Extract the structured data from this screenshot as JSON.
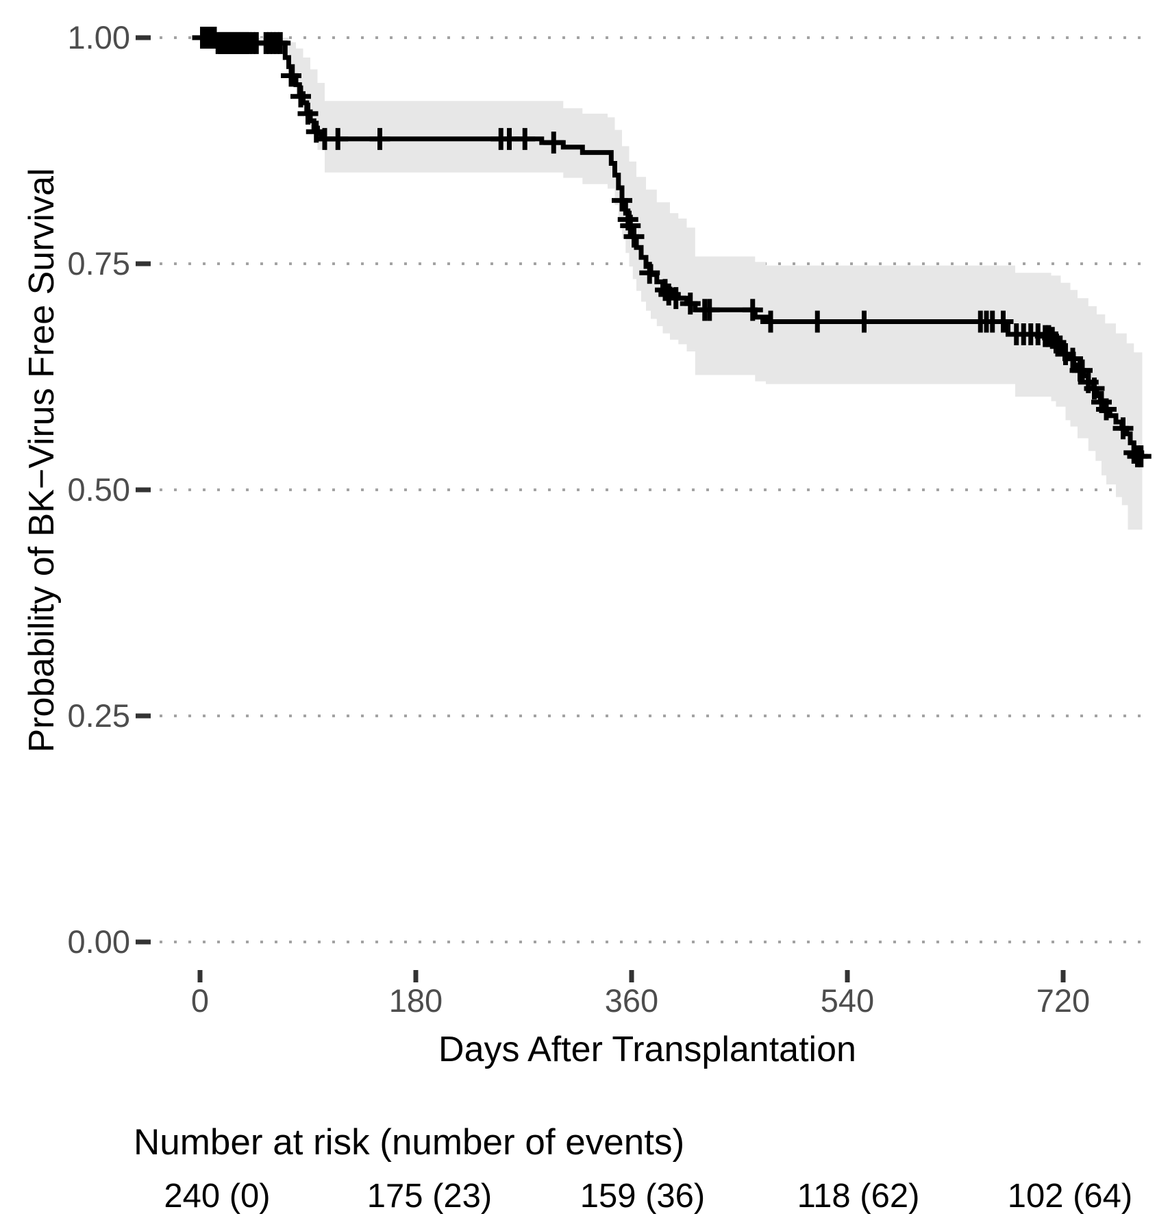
{
  "figure": {
    "background": "#ffffff"
  },
  "chart_data": {
    "type": "line",
    "subtype": "kaplan-meier-step-curve",
    "title": "",
    "xlabel": "Days After Transplantation",
    "ylabel": "Probability of BK−Virus Free Survival",
    "xlim": [
      -36,
      795
    ],
    "ylim": [
      0,
      1
    ],
    "grid": "horizontal-dotted",
    "legend_position": "none",
    "x_ticks": [
      {
        "value": 0,
        "label": "0"
      },
      {
        "value": 180,
        "label": "180"
      },
      {
        "value": 360,
        "label": "360"
      },
      {
        "value": 540,
        "label": "540"
      },
      {
        "value": 720,
        "label": "720"
      }
    ],
    "y_ticks": [
      {
        "value": 1.0,
        "label": "1.00"
      },
      {
        "value": 0.75,
        "label": "0.75"
      },
      {
        "value": 0.5,
        "label": "0.50"
      },
      {
        "value": 0.25,
        "label": "0.25"
      },
      {
        "value": 0.0,
        "label": "0.00"
      }
    ],
    "colors": {
      "curve": "#000000",
      "confidence_band": "#e7e7e7",
      "gridline": "#a3a3a3",
      "tick_mark": "#333333",
      "tick_label": "#4d4d4d",
      "axis_title": "#000000"
    },
    "km_curve": [
      [
        0,
        1.0
      ],
      [
        30,
        1.0
      ],
      [
        30,
        0.994
      ],
      [
        68,
        0.994
      ],
      [
        71,
        0.978
      ],
      [
        74,
        0.968
      ],
      [
        77,
        0.958
      ],
      [
        80,
        0.948
      ],
      [
        83,
        0.938
      ],
      [
        86,
        0.928
      ],
      [
        89,
        0.918
      ],
      [
        92,
        0.908
      ],
      [
        95,
        0.9
      ],
      [
        98,
        0.894
      ],
      [
        101,
        0.89
      ],
      [
        104,
        0.888
      ],
      [
        285,
        0.888
      ],
      [
        285,
        0.884
      ],
      [
        303,
        0.879
      ],
      [
        319,
        0.873
      ],
      [
        340,
        0.873
      ],
      [
        343,
        0.861
      ],
      [
        346,
        0.848
      ],
      [
        349,
        0.834
      ],
      [
        352,
        0.82
      ],
      [
        355,
        0.806
      ],
      [
        358,
        0.792
      ],
      [
        361,
        0.78
      ],
      [
        364,
        0.768
      ],
      [
        368,
        0.757
      ],
      [
        372,
        0.747
      ],
      [
        376,
        0.738
      ],
      [
        381,
        0.73
      ],
      [
        386,
        0.722
      ],
      [
        392,
        0.716
      ],
      [
        399,
        0.712
      ],
      [
        406,
        0.706
      ],
      [
        413,
        0.699
      ],
      [
        463,
        0.699
      ],
      [
        463,
        0.691
      ],
      [
        472,
        0.686
      ],
      [
        674,
        0.686
      ],
      [
        674,
        0.672
      ],
      [
        710,
        0.672
      ],
      [
        710,
        0.667
      ],
      [
        714,
        0.661
      ],
      [
        718,
        0.655
      ],
      [
        722,
        0.65
      ],
      [
        726,
        0.645
      ],
      [
        729,
        0.638
      ],
      [
        732,
        0.632
      ],
      [
        737,
        0.626
      ],
      [
        741,
        0.619
      ],
      [
        745,
        0.612
      ],
      [
        748,
        0.604
      ],
      [
        751,
        0.597
      ],
      [
        755,
        0.589
      ],
      [
        759,
        0.582
      ],
      [
        764,
        0.575
      ],
      [
        769,
        0.568
      ],
      [
        773,
        0.562
      ],
      [
        776,
        0.552
      ],
      [
        779,
        0.541
      ],
      [
        783,
        0.537
      ],
      [
        786,
        0.537
      ]
    ],
    "censor_marks": [
      [
        2,
        1.0
      ],
      [
        3,
        1.0
      ],
      [
        5,
        1.0
      ],
      [
        6,
        1.0
      ],
      [
        8,
        1.0
      ],
      [
        9,
        1.0
      ],
      [
        11,
        1.0
      ],
      [
        12,
        1.0
      ],
      [
        15,
        0.994
      ],
      [
        17,
        0.994
      ],
      [
        19,
        0.994
      ],
      [
        21,
        0.994
      ],
      [
        23,
        0.994
      ],
      [
        25,
        0.994
      ],
      [
        27,
        0.994
      ],
      [
        29,
        0.994
      ],
      [
        31,
        0.994
      ],
      [
        33,
        0.994
      ],
      [
        35,
        0.994
      ],
      [
        37,
        0.994
      ],
      [
        39,
        0.994
      ],
      [
        41,
        0.994
      ],
      [
        44,
        0.994
      ],
      [
        47,
        0.994
      ],
      [
        55,
        0.994
      ],
      [
        58,
        0.994
      ],
      [
        61,
        0.994
      ],
      [
        64,
        0.994
      ],
      [
        67,
        0.994
      ],
      [
        76,
        0.958
      ],
      [
        84,
        0.935
      ],
      [
        90,
        0.916
      ],
      [
        97,
        0.896
      ],
      [
        104,
        0.888
      ],
      [
        115,
        0.888
      ],
      [
        150,
        0.888
      ],
      [
        251,
        0.888
      ],
      [
        258,
        0.888
      ],
      [
        271,
        0.888
      ],
      [
        295,
        0.884
      ],
      [
        352,
        0.82
      ],
      [
        357,
        0.799
      ],
      [
        359,
        0.792
      ],
      [
        362,
        0.78
      ],
      [
        375,
        0.74
      ],
      [
        388,
        0.721
      ],
      [
        391,
        0.716
      ],
      [
        397,
        0.712
      ],
      [
        409,
        0.706
      ],
      [
        421,
        0.699
      ],
      [
        425,
        0.699
      ],
      [
        461,
        0.699
      ],
      [
        476,
        0.686
      ],
      [
        515,
        0.686
      ],
      [
        554,
        0.686
      ],
      [
        651,
        0.686
      ],
      [
        656,
        0.686
      ],
      [
        661,
        0.686
      ],
      [
        670,
        0.686
      ],
      [
        681,
        0.672
      ],
      [
        687,
        0.672
      ],
      [
        693,
        0.672
      ],
      [
        699,
        0.672
      ],
      [
        705,
        0.67
      ],
      [
        708,
        0.67
      ],
      [
        711,
        0.668
      ],
      [
        714,
        0.663
      ],
      [
        722,
        0.65
      ],
      [
        728,
        0.645
      ],
      [
        734,
        0.632
      ],
      [
        736,
        0.632
      ],
      [
        741,
        0.619
      ],
      [
        746,
        0.612
      ],
      [
        752,
        0.597
      ],
      [
        756,
        0.589
      ],
      [
        770,
        0.568
      ],
      [
        779,
        0.541
      ],
      [
        782,
        0.537
      ],
      [
        785,
        0.537
      ]
    ],
    "ci_upper": [
      [
        0,
        1.0
      ],
      [
        68,
        1.0
      ],
      [
        74,
        0.995
      ],
      [
        80,
        0.988
      ],
      [
        86,
        0.978
      ],
      [
        92,
        0.965
      ],
      [
        98,
        0.95
      ],
      [
        104,
        0.93
      ],
      [
        285,
        0.93
      ],
      [
        303,
        0.922
      ],
      [
        319,
        0.916
      ],
      [
        340,
        0.912
      ],
      [
        346,
        0.898
      ],
      [
        352,
        0.88
      ],
      [
        358,
        0.863
      ],
      [
        364,
        0.846
      ],
      [
        372,
        0.832
      ],
      [
        381,
        0.818
      ],
      [
        392,
        0.806
      ],
      [
        399,
        0.8
      ],
      [
        406,
        0.79
      ],
      [
        413,
        0.758
      ],
      [
        463,
        0.752
      ],
      [
        472,
        0.748
      ],
      [
        674,
        0.748
      ],
      [
        680,
        0.74
      ],
      [
        710,
        0.737
      ],
      [
        718,
        0.729
      ],
      [
        726,
        0.721
      ],
      [
        732,
        0.712
      ],
      [
        741,
        0.703
      ],
      [
        748,
        0.694
      ],
      [
        755,
        0.684
      ],
      [
        764,
        0.673
      ],
      [
        773,
        0.662
      ],
      [
        779,
        0.652
      ],
      [
        786,
        0.643
      ]
    ],
    "ci_lower": [
      [
        0,
        1.0
      ],
      [
        30,
        0.99
      ],
      [
        68,
        0.982
      ],
      [
        74,
        0.957
      ],
      [
        80,
        0.937
      ],
      [
        86,
        0.917
      ],
      [
        92,
        0.897
      ],
      [
        98,
        0.876
      ],
      [
        104,
        0.851
      ],
      [
        285,
        0.851
      ],
      [
        303,
        0.845
      ],
      [
        319,
        0.838
      ],
      [
        340,
        0.833
      ],
      [
        346,
        0.815
      ],
      [
        349,
        0.796
      ],
      [
        352,
        0.778
      ],
      [
        355,
        0.762
      ],
      [
        358,
        0.747
      ],
      [
        361,
        0.733
      ],
      [
        364,
        0.72
      ],
      [
        368,
        0.708
      ],
      [
        372,
        0.698
      ],
      [
        376,
        0.689
      ],
      [
        381,
        0.681
      ],
      [
        386,
        0.673
      ],
      [
        392,
        0.666
      ],
      [
        399,
        0.661
      ],
      [
        406,
        0.653
      ],
      [
        413,
        0.627
      ],
      [
        463,
        0.62
      ],
      [
        472,
        0.617
      ],
      [
        674,
        0.617
      ],
      [
        680,
        0.603
      ],
      [
        710,
        0.598
      ],
      [
        714,
        0.592
      ],
      [
        722,
        0.577
      ],
      [
        726,
        0.57
      ],
      [
        732,
        0.557
      ],
      [
        741,
        0.543
      ],
      [
        747,
        0.532
      ],
      [
        752,
        0.516
      ],
      [
        756,
        0.506
      ],
      [
        764,
        0.492
      ],
      [
        769,
        0.483
      ],
      [
        774,
        0.456
      ],
      [
        786,
        0.45
      ]
    ],
    "risk_table": {
      "header": "Number at risk (number of events)",
      "times": [
        0,
        180,
        360,
        540,
        720
      ],
      "values": [
        "240 (0)",
        "175 (23)",
        "159 (36)",
        "118 (62)",
        "102 (64)"
      ]
    }
  }
}
